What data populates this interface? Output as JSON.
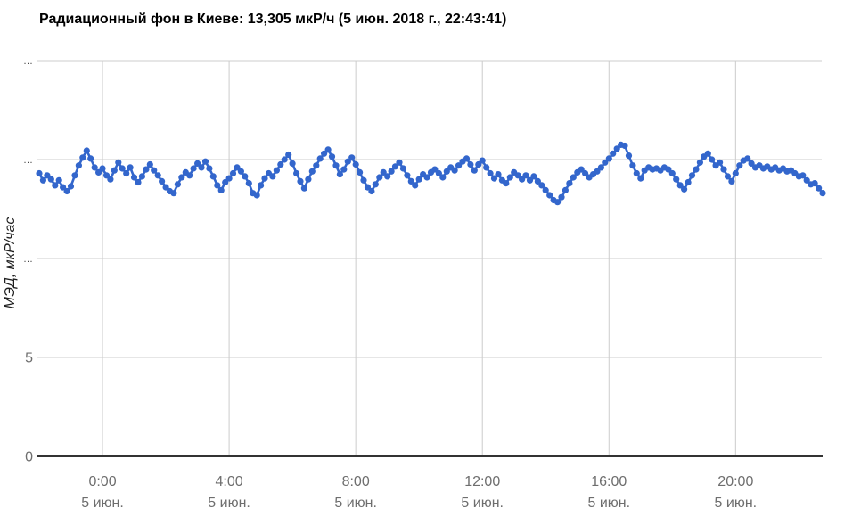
{
  "title": "Радиационный фон в Киеве: 13,305 мкР/ч (5 июн. 2018 г., 22:43:41)",
  "y_axis": {
    "title": "МЭД, мкР/час"
  },
  "colors": {
    "series": "#3366cc",
    "gridline": "#cccccc",
    "baseline": "#333333",
    "tick_label": "#6e6e6e",
    "truncated_label": "#444444"
  },
  "chart_data": {
    "type": "line",
    "title": "Радиационный фон в Киеве: 13,305 мкР/ч (5 июн. 2018 г., 22:43:41)",
    "xlabel": "",
    "ylabel": "МЭД, мкР/час",
    "ylim": [
      0,
      20
    ],
    "grid": true,
    "legend": "none",
    "current_value_label": "13,305 мкР/ч",
    "current_time_label": "5 июн. 2018 г., 22:43:41",
    "y_ticks": [
      {
        "value": 0,
        "label": "0"
      },
      {
        "value": 5,
        "label": "5"
      },
      {
        "value": 10,
        "label": "…"
      },
      {
        "value": 15,
        "label": "…"
      },
      {
        "value": 20,
        "label": "…"
      }
    ],
    "x_ticks": [
      {
        "hour": 0,
        "time": "0:00",
        "date": "5 июн."
      },
      {
        "hour": 4,
        "time": "4:00",
        "date": "5 июн."
      },
      {
        "hour": 8,
        "time": "8:00",
        "date": "5 июн."
      },
      {
        "hour": 12,
        "time": "12:00",
        "date": "5 июн."
      },
      {
        "hour": 16,
        "time": "16:00",
        "date": "5 июн."
      },
      {
        "hour": 20,
        "time": "20:00",
        "date": "5 июн."
      }
    ],
    "series_name": "МЭД, мкР/час",
    "x_start_hour": -2,
    "x_step_hours": 0.125,
    "values": [
      14.3,
      13.95,
      14.2,
      14.0,
      13.7,
      13.95,
      13.6,
      13.4,
      13.65,
      14.2,
      14.7,
      15.1,
      15.45,
      15.05,
      14.6,
      14.35,
      14.55,
      14.2,
      14.0,
      14.45,
      14.85,
      14.55,
      14.3,
      14.6,
      14.1,
      13.85,
      14.15,
      14.5,
      14.75,
      14.45,
      14.2,
      13.9,
      13.6,
      13.4,
      13.3,
      13.75,
      14.1,
      14.35,
      14.2,
      14.55,
      14.8,
      14.6,
      14.9,
      14.55,
      14.15,
      13.7,
      13.45,
      13.85,
      14.05,
      14.3,
      14.6,
      14.4,
      14.15,
      13.8,
      13.3,
      13.2,
      13.7,
      14.05,
      14.3,
      14.15,
      14.45,
      14.75,
      15.0,
      15.25,
      14.8,
      14.3,
      13.9,
      13.55,
      14.0,
      14.4,
      14.7,
      15.05,
      15.3,
      15.5,
      15.15,
      14.7,
      14.25,
      14.5,
      14.9,
      15.1,
      14.75,
      14.35,
      13.95,
      13.6,
      13.4,
      13.75,
      14.1,
      14.35,
      14.15,
      14.4,
      14.65,
      14.85,
      14.55,
      14.2,
      13.9,
      13.7,
      14.0,
      14.25,
      14.1,
      14.35,
      14.5,
      14.3,
      14.1,
      14.4,
      14.6,
      14.45,
      14.7,
      14.9,
      15.05,
      14.75,
      14.45,
      14.75,
      14.95,
      14.6,
      14.3,
      14.05,
      14.25,
      13.95,
      13.8,
      14.1,
      14.35,
      14.2,
      14.0,
      14.2,
      13.95,
      14.15,
      13.9,
      13.7,
      13.45,
      13.2,
      12.95,
      12.85,
      13.1,
      13.45,
      13.8,
      14.1,
      14.35,
      14.5,
      14.3,
      14.1,
      14.25,
      14.4,
      14.6,
      14.85,
      15.05,
      15.3,
      15.55,
      15.75,
      15.7,
      15.2,
      14.7,
      14.3,
      14.05,
      14.45,
      14.6,
      14.5,
      14.55,
      14.45,
      14.6,
      14.5,
      14.3,
      14.0,
      13.7,
      13.5,
      13.85,
      14.2,
      14.5,
      14.85,
      15.15,
      15.3,
      15.0,
      14.7,
      14.85,
      14.5,
      14.15,
      13.9,
      14.3,
      14.7,
      14.95,
      15.05,
      14.8,
      14.6,
      14.7,
      14.55,
      14.65,
      14.5,
      14.6,
      14.45,
      14.55,
      14.4,
      14.45,
      14.3,
      14.15,
      14.2,
      13.95,
      13.75,
      13.8,
      13.55,
      13.305
    ]
  }
}
